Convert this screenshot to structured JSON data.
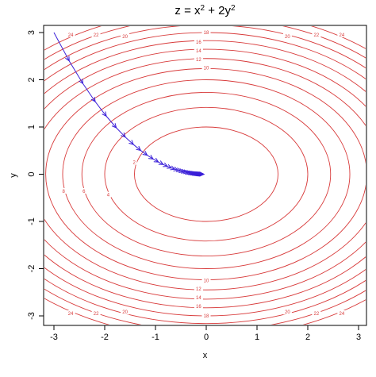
{
  "chart_data": {
    "type": "contour",
    "title": {
      "base": "z = x",
      "exp1": "2",
      "mid": " + 2y",
      "exp2": "2"
    },
    "xlabel": "x",
    "ylabel": "y",
    "xlim": [
      -3,
      3
    ],
    "ylim": [
      -3,
      3
    ],
    "x_ticks": [
      -3,
      -2,
      -1,
      0,
      1,
      2,
      3
    ],
    "y_ticks": [
      -3,
      -2,
      -1,
      0,
      1,
      2,
      3
    ],
    "function": "x^2 + 2y^2",
    "contour_levels": [
      2,
      4,
      6,
      8,
      10,
      12,
      14,
      16,
      18,
      20,
      22,
      24
    ],
    "contour_labels": [
      {
        "text": "2",
        "x": -1.42,
        "y": 0.25
      },
      {
        "text": "4",
        "x": -1.93,
        "y": -0.44
      },
      {
        "text": "6",
        "x": -2.41,
        "y": -0.36
      },
      {
        "text": "8",
        "x": -2.81,
        "y": -0.36
      },
      {
        "text": "10",
        "x": 0.0,
        "y": 2.25
      },
      {
        "text": "12",
        "x": -0.15,
        "y": 2.43
      },
      {
        "text": "14",
        "x": -0.15,
        "y": 2.61
      },
      {
        "text": "16",
        "x": -0.15,
        "y": 2.8
      },
      {
        "text": "18",
        "x": 0.0,
        "y": 3.0
      },
      {
        "text": "20",
        "x": -1.6,
        "y": 2.92
      },
      {
        "text": "22",
        "x": -2.17,
        "y": 2.95
      },
      {
        "text": "24",
        "x": -2.67,
        "y": 2.95
      },
      {
        "text": "20",
        "x": 1.6,
        "y": 2.92
      },
      {
        "text": "22",
        "x": 2.17,
        "y": 2.95
      },
      {
        "text": "24",
        "x": 2.67,
        "y": 2.95
      },
      {
        "text": "10",
        "x": 0.0,
        "y": -2.25
      },
      {
        "text": "12",
        "x": -0.15,
        "y": -2.43
      },
      {
        "text": "14",
        "x": -0.15,
        "y": -2.61
      },
      {
        "text": "16",
        "x": -0.15,
        "y": -2.8
      },
      {
        "text": "18",
        "x": 0.0,
        "y": -3.0
      },
      {
        "text": "20",
        "x": -1.6,
        "y": -2.92
      },
      {
        "text": "22",
        "x": -2.17,
        "y": -2.95
      },
      {
        "text": "24",
        "x": -2.67,
        "y": -2.95
      },
      {
        "text": "20",
        "x": 1.6,
        "y": -2.92
      },
      {
        "text": "22",
        "x": 2.17,
        "y": -2.95
      },
      {
        "text": "24",
        "x": 2.67,
        "y": -2.95
      }
    ],
    "path": {
      "start": [
        -3,
        3
      ],
      "method": "gradient descent",
      "step": 0.05,
      "steps": 40
    },
    "colors": {
      "contour": "#d83a3a",
      "path": "#3a1fd8",
      "axis": "#000000"
    },
    "grid": false,
    "legend": "none"
  }
}
